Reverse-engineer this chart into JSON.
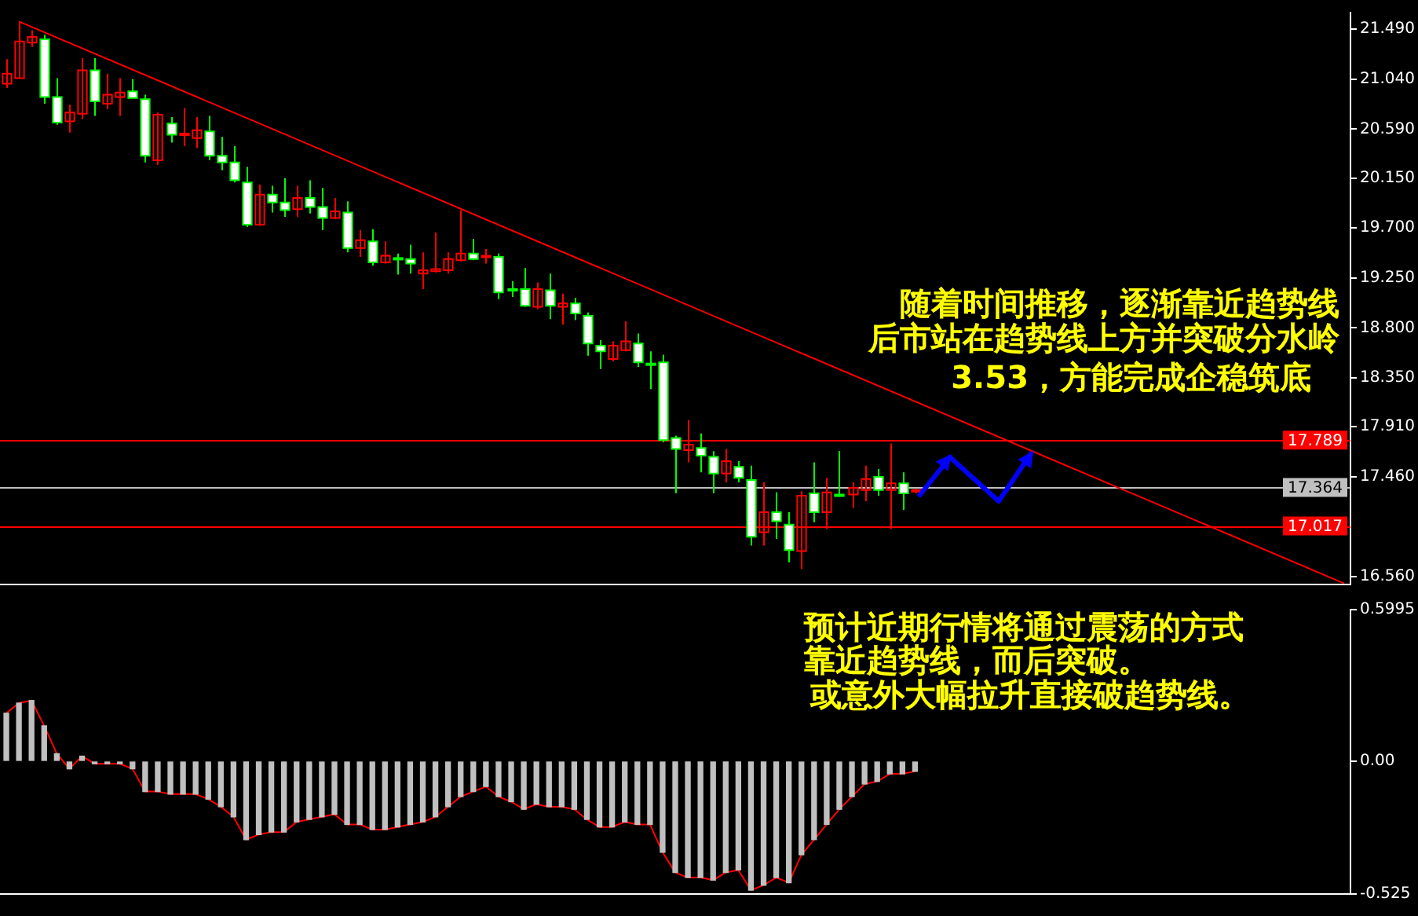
{
  "chart_data": [
    {
      "type": "candlestick",
      "tick_labels": "y",
      "grid": false,
      "categories": [
        null,
        null,
        null,
        null,
        null,
        null,
        null,
        null,
        null,
        null,
        null,
        null,
        null,
        null,
        null,
        null,
        null,
        null,
        null,
        null,
        null,
        null,
        null,
        null,
        null,
        null,
        null,
        null,
        null,
        null,
        null,
        null,
        null,
        null,
        null,
        null,
        null,
        null,
        null,
        null,
        null,
        null,
        null,
        null,
        null,
        null,
        null,
        null,
        null,
        null,
        null,
        null,
        null,
        null,
        null,
        null,
        null,
        null,
        null,
        null,
        null,
        null,
        null,
        null,
        null,
        null,
        null,
        null,
        null,
        null,
        null,
        null,
        null,
        null,
        null,
        null,
        null,
        null,
        null,
        null,
        null,
        null,
        null,
        null,
        null,
        null,
        null,
        null,
        null,
        null,
        null,
        null,
        null,
        null,
        null,
        null,
        null,
        null,
        null,
        null,
        null,
        null,
        null,
        null,
        null,
        null,
        null
      ],
      "ohlc": [
        [
          21.0,
          21.22,
          20.96,
          21.09
        ],
        [
          21.05,
          21.56,
          21.05,
          21.38
        ],
        [
          21.37,
          21.48,
          21.33,
          21.42
        ],
        [
          21.4,
          21.44,
          20.82,
          20.88
        ],
        [
          20.88,
          21.05,
          20.63,
          20.65
        ],
        [
          20.66,
          20.81,
          20.56,
          20.74
        ],
        [
          20.73,
          21.23,
          20.68,
          21.12
        ],
        [
          21.12,
          21.23,
          20.71,
          20.84
        ],
        [
          20.82,
          21.09,
          20.77,
          20.9
        ],
        [
          20.88,
          21.05,
          20.71,
          20.92
        ],
        [
          20.93,
          21.04,
          20.87,
          20.87
        ],
        [
          20.86,
          20.9,
          20.29,
          20.35
        ],
        [
          20.31,
          20.74,
          20.27,
          20.72
        ],
        [
          20.64,
          20.7,
          20.47,
          20.54
        ],
        [
          20.54,
          20.78,
          20.44,
          20.55
        ],
        [
          20.51,
          20.7,
          20.42,
          20.58
        ],
        [
          20.57,
          20.71,
          20.31,
          20.35
        ],
        [
          20.35,
          20.52,
          20.22,
          20.29
        ],
        [
          20.29,
          20.44,
          20.11,
          20.13
        ],
        [
          20.11,
          20.25,
          19.71,
          19.73
        ],
        [
          19.73,
          20.09,
          19.72,
          20.0
        ],
        [
          20.0,
          20.08,
          19.84,
          19.93
        ],
        [
          19.93,
          20.15,
          19.8,
          19.86
        ],
        [
          19.87,
          20.08,
          19.8,
          19.97
        ],
        [
          19.97,
          20.13,
          19.83,
          19.89
        ],
        [
          19.89,
          20.06,
          19.68,
          19.79
        ],
        [
          19.79,
          19.97,
          19.78,
          19.85
        ],
        [
          19.84,
          19.94,
          19.48,
          19.52
        ],
        [
          19.52,
          19.68,
          19.44,
          19.59
        ],
        [
          19.58,
          19.69,
          19.36,
          19.39
        ],
        [
          19.39,
          19.58,
          19.38,
          19.45
        ],
        [
          19.43,
          19.47,
          19.28,
          19.42
        ],
        [
          19.42,
          19.55,
          19.29,
          19.38
        ],
        [
          19.29,
          19.48,
          19.15,
          19.32
        ],
        [
          19.31,
          19.66,
          19.3,
          19.33
        ],
        [
          19.32,
          19.48,
          19.29,
          19.42
        ],
        [
          19.41,
          19.86,
          19.4,
          19.47
        ],
        [
          19.47,
          19.6,
          19.41,
          19.42
        ],
        [
          19.44,
          19.51,
          19.38,
          19.45
        ],
        [
          19.44,
          19.47,
          19.06,
          19.12
        ],
        [
          19.15,
          19.22,
          19.08,
          19.14
        ],
        [
          19.15,
          19.34,
          18.99,
          19.0
        ],
        [
          18.99,
          19.21,
          18.97,
          19.15
        ],
        [
          19.14,
          19.29,
          18.88,
          19.0
        ],
        [
          18.99,
          19.11,
          18.83,
          19.02
        ],
        [
          19.02,
          19.07,
          18.87,
          18.93
        ],
        [
          18.91,
          18.94,
          18.55,
          18.66
        ],
        [
          18.64,
          18.69,
          18.43,
          18.59
        ],
        [
          18.52,
          18.68,
          18.5,
          18.64
        ],
        [
          18.6,
          18.86,
          18.59,
          18.68
        ],
        [
          18.66,
          18.75,
          18.45,
          18.49
        ],
        [
          18.48,
          18.59,
          18.25,
          18.47
        ],
        [
          18.49,
          18.56,
          17.77,
          17.79
        ],
        [
          17.81,
          17.83,
          17.31,
          17.71
        ],
        [
          17.7,
          17.97,
          17.59,
          17.75
        ],
        [
          17.72,
          17.85,
          17.5,
          17.65
        ],
        [
          17.64,
          17.69,
          17.31,
          17.49
        ],
        [
          17.49,
          17.71,
          17.41,
          17.6
        ],
        [
          17.55,
          17.6,
          17.41,
          17.45
        ],
        [
          17.43,
          17.56,
          16.84,
          16.92
        ],
        [
          16.96,
          17.41,
          16.84,
          17.14
        ],
        [
          17.14,
          17.32,
          16.9,
          17.06
        ],
        [
          17.03,
          17.14,
          16.69,
          16.8
        ],
        [
          16.79,
          17.33,
          16.63,
          17.29
        ],
        [
          17.31,
          17.59,
          17.05,
          17.14
        ],
        [
          17.14,
          17.45,
          16.99,
          17.32
        ],
        [
          17.3,
          17.69,
          17.28,
          17.29
        ],
        [
          17.3,
          17.41,
          17.18,
          17.36
        ],
        [
          17.34,
          17.56,
          17.24,
          17.44
        ],
        [
          17.46,
          17.53,
          17.29,
          17.34
        ],
        [
          17.34,
          17.76,
          16.99,
          17.4
        ],
        [
          17.4,
          17.5,
          17.16,
          17.31
        ],
        [
          17.33,
          17.35,
          17.31,
          17.34
        ],
        null,
        null,
        null,
        null,
        null,
        null,
        null,
        null,
        null,
        null,
        null,
        null,
        null,
        null,
        null,
        null,
        null,
        null,
        null,
        null,
        null,
        null,
        null,
        null,
        null,
        null,
        null,
        null,
        null,
        null,
        null,
        null,
        null,
        null
      ],
      "colors": [
        "#ff0000",
        "#ff0000",
        "#ff0000",
        "#ffffff",
        "#ffffff",
        "#ff0000",
        "#ff0000",
        "#ffffff",
        "#ff0000",
        "#ff0000",
        "#ffffff",
        "#ffffff",
        "#ff0000",
        "#ffffff",
        "#ff0000",
        "#ff0000",
        "#ffffff",
        "#ffffff",
        "#ffffff",
        "#ffffff",
        "#ff0000",
        "#ffffff",
        "#ffffff",
        "#ff0000",
        "#ffffff",
        "#ffffff",
        "#ff0000",
        "#ffffff",
        "#ff0000",
        "#ffffff",
        "#ff0000",
        "#ffffff",
        "#ffffff",
        "#ff0000",
        "#ff0000",
        "#ff0000",
        "#ff0000",
        "#ffffff",
        "#ff0000",
        "#ffffff",
        "#ffffff",
        "#ffffff",
        "#ff0000",
        "#ffffff",
        "#ff0000",
        "#ffffff",
        "#ffffff",
        "#ffffff",
        "#ff0000",
        "#ff0000",
        "#ffffff",
        "#ffffff",
        "#ffffff",
        "#ffffff",
        "#ff0000",
        "#ffffff",
        "#ffffff",
        "#ff0000",
        "#ffffff",
        "#ffffff",
        "#ff0000",
        "#ffffff",
        "#ffffff",
        "#ff0000",
        "#ffffff",
        "#ff0000",
        "#ffffff",
        "#ff0000",
        "#ff0000",
        "#ffffff",
        "#ff0000",
        "#ffffff",
        "#ff0000",
        null,
        null,
        null,
        null,
        null,
        null,
        null,
        null,
        null,
        null,
        null,
        null,
        null,
        null,
        null,
        null,
        null,
        null,
        null,
        null,
        null,
        null,
        null,
        null,
        null,
        null,
        null,
        null,
        null,
        null,
        null,
        null,
        null,
        null
      ],
      "series": [
        {
          "type": "line",
          "color": "#ff0000",
          "values": [
            null,
            21.56,
            null,
            null,
            null,
            null,
            null,
            null,
            null,
            null,
            null,
            null,
            null,
            null,
            null,
            null,
            null,
            null,
            null,
            null,
            null,
            null,
            null,
            null,
            null,
            null,
            null,
            null,
            null,
            null,
            null,
            null,
            null,
            null,
            null,
            null,
            null,
            null,
            null,
            null,
            null,
            null,
            null,
            null,
            null,
            null,
            null,
            null,
            null,
            null,
            null,
            null,
            null,
            null,
            null,
            null,
            null,
            null,
            null,
            null,
            null,
            null,
            null,
            null,
            null,
            null,
            null,
            null,
            null,
            null,
            null,
            null,
            null,
            null,
            null,
            null,
            null,
            null,
            null,
            null,
            null,
            null,
            null,
            null,
            null,
            null,
            null,
            null,
            null,
            null,
            null,
            null,
            null,
            null,
            null,
            null,
            null,
            null,
            null,
            null,
            null,
            null,
            null,
            null,
            null,
            null,
            16.5
          ]
        }
      ],
      "ylim": [
        16.49,
        21.64
      ],
      "yticks": [
        {
          "value": 16.56,
          "label": "16.560"
        },
        {
          "value": 17.46,
          "label": "17.460"
        },
        {
          "value": 17.91,
          "label": "17.910"
        },
        {
          "value": 18.35,
          "label": "18.350"
        },
        {
          "value": 18.8,
          "label": "18.800"
        },
        {
          "value": 19.25,
          "label": "19.250"
        },
        {
          "value": 19.7,
          "label": "19.700"
        },
        {
          "value": 20.15,
          "label": "20.150"
        },
        {
          "value": 20.59,
          "label": "20.590"
        },
        {
          "value": 21.04,
          "label": "21.040"
        },
        {
          "value": 21.49,
          "label": "21.490"
        }
      ],
      "ref_lines": [
        {
          "axis": "y",
          "value": 17.789,
          "label": "17.789",
          "color": "#ff0000"
        },
        {
          "axis": "y",
          "value": 17.364,
          "label": "17.364",
          "color": "#c0c0c0"
        },
        {
          "axis": "y",
          "value": 17.017,
          "label": "17.017",
          "color": "#ff0000"
        }
      ],
      "annotations": [
        "随着时间推移，逐渐靠近趋势线",
        "后市站在趋势线上方并突破分水岭",
        "3.53，方能完成企稳筑底"
      ]
    },
    {
      "type": "bar",
      "tick_labels": "y",
      "grid": false,
      "categories": [
        null,
        null,
        null,
        null,
        null,
        null,
        null,
        null,
        null,
        null,
        null,
        null,
        null,
        null,
        null,
        null,
        null,
        null,
        null,
        null,
        null,
        null,
        null,
        null,
        null,
        null,
        null,
        null,
        null,
        null,
        null,
        null,
        null,
        null,
        null,
        null,
        null,
        null,
        null,
        null,
        null,
        null,
        null,
        null,
        null,
        null,
        null,
        null,
        null,
        null,
        null,
        null,
        null,
        null,
        null,
        null,
        null,
        null,
        null,
        null,
        null,
        null,
        null,
        null,
        null,
        null,
        null,
        null,
        null,
        null,
        null,
        null,
        null,
        null,
        null,
        null,
        null,
        null,
        null,
        null,
        null,
        null,
        null,
        null,
        null,
        null,
        null,
        null,
        null,
        null,
        null,
        null,
        null,
        null,
        null,
        null,
        null,
        null,
        null,
        null,
        null,
        null,
        null,
        null,
        null,
        null,
        null
      ],
      "series": [
        {
          "type": "bar",
          "color": "#c0c0c0",
          "values": [
            0.19,
            0.23,
            0.24,
            0.14,
            0.03,
            -0.03,
            0.02,
            -0.01,
            -0.01,
            -0.01,
            -0.03,
            -0.12,
            -0.12,
            -0.13,
            -0.13,
            -0.13,
            -0.15,
            -0.18,
            -0.22,
            -0.31,
            -0.29,
            -0.28,
            -0.28,
            -0.24,
            -0.23,
            -0.22,
            -0.21,
            -0.25,
            -0.25,
            -0.27,
            -0.27,
            -0.26,
            -0.25,
            -0.24,
            -0.22,
            -0.18,
            -0.14,
            -0.12,
            -0.1,
            -0.14,
            -0.16,
            -0.19,
            -0.17,
            -0.18,
            -0.18,
            -0.19,
            -0.23,
            -0.26,
            -0.26,
            -0.24,
            -0.25,
            -0.25,
            -0.36,
            -0.44,
            -0.46,
            -0.46,
            -0.47,
            -0.44,
            -0.43,
            -0.51,
            -0.49,
            -0.46,
            -0.48,
            -0.37,
            -0.31,
            -0.25,
            -0.19,
            -0.14,
            -0.09,
            -0.08,
            -0.05,
            -0.05,
            -0.04,
            null,
            null,
            null,
            null,
            null,
            null,
            null,
            null,
            null,
            null,
            null,
            null,
            null,
            null,
            null,
            null,
            null,
            null,
            null,
            null,
            null,
            null,
            null,
            null,
            null,
            null,
            null,
            null,
            null,
            null,
            null,
            null,
            null,
            null
          ]
        },
        {
          "type": "line",
          "color": "#ff0000",
          "values": [
            0.19,
            0.23,
            0.24,
            0.14,
            0.03,
            -0.03,
            0.02,
            -0.01,
            -0.01,
            -0.01,
            -0.03,
            -0.12,
            -0.12,
            -0.13,
            -0.13,
            -0.13,
            -0.15,
            -0.18,
            -0.22,
            -0.31,
            -0.29,
            -0.28,
            -0.28,
            -0.24,
            -0.23,
            -0.22,
            -0.21,
            -0.25,
            -0.25,
            -0.27,
            -0.27,
            -0.26,
            -0.25,
            -0.24,
            -0.22,
            -0.18,
            -0.14,
            -0.12,
            -0.1,
            -0.14,
            -0.16,
            -0.19,
            -0.17,
            -0.18,
            -0.18,
            -0.19,
            -0.23,
            -0.26,
            -0.26,
            -0.24,
            -0.25,
            -0.25,
            -0.36,
            -0.44,
            -0.46,
            -0.46,
            -0.47,
            -0.44,
            -0.43,
            -0.51,
            -0.49,
            -0.46,
            -0.48,
            -0.37,
            -0.31,
            -0.25,
            -0.19,
            -0.14,
            -0.09,
            -0.08,
            -0.05,
            -0.05,
            -0.04,
            null,
            null,
            null,
            null,
            null,
            null,
            null,
            null,
            null,
            null,
            null,
            null,
            null,
            null,
            null,
            null,
            null,
            null,
            null,
            null,
            null,
            null,
            null,
            null,
            null,
            null,
            null,
            null,
            null,
            null,
            null,
            null,
            null,
            null
          ]
        }
      ],
      "ylim": [
        -0.525,
        0.5995
      ],
      "yticks": [
        0.5995,
        {
          "value": 0,
          "label": "0.00"
        },
        -0.525
      ],
      "annotations": [
        "预计近期行情将通过震荡的方式",
        "靠近趋势线，而后突破。",
        "或意外大幅拉升直接破趋势线。"
      ]
    }
  ]
}
